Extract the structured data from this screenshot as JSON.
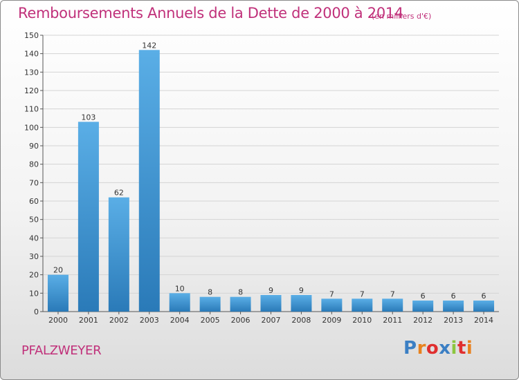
{
  "chart_data": {
    "type": "bar",
    "title": "Remboursements Annuels de la Dette de 2000 à 2014",
    "subtitle": "(en milliers d'€)",
    "categories": [
      "2000",
      "2001",
      "2002",
      "2003",
      "2004",
      "2005",
      "2006",
      "2007",
      "2008",
      "2009",
      "2010",
      "2011",
      "2012",
      "2013",
      "2014"
    ],
    "values": [
      20,
      103,
      62,
      142,
      10,
      8,
      8,
      9,
      9,
      7,
      7,
      7,
      6,
      6,
      6
    ],
    "ylim": [
      0,
      150
    ],
    "yticks": [
      0,
      10,
      20,
      30,
      40,
      50,
      60,
      70,
      80,
      90,
      100,
      110,
      120,
      130,
      140,
      150
    ],
    "grid": true,
    "legend": "none",
    "colors": {
      "bar_light": "#5aaee6",
      "bar_dark": "#2a7ab8",
      "text_accent": "#c0307a"
    }
  },
  "footer": {
    "commune": "PFALZWEYER",
    "logo_text": "Proxiti",
    "logo_colors": [
      "#3b7fc4",
      "#e8821e",
      "#e02f2f",
      "#3b7fc4",
      "#8cc63f",
      "#e02f2f",
      "#e8821e"
    ]
  }
}
